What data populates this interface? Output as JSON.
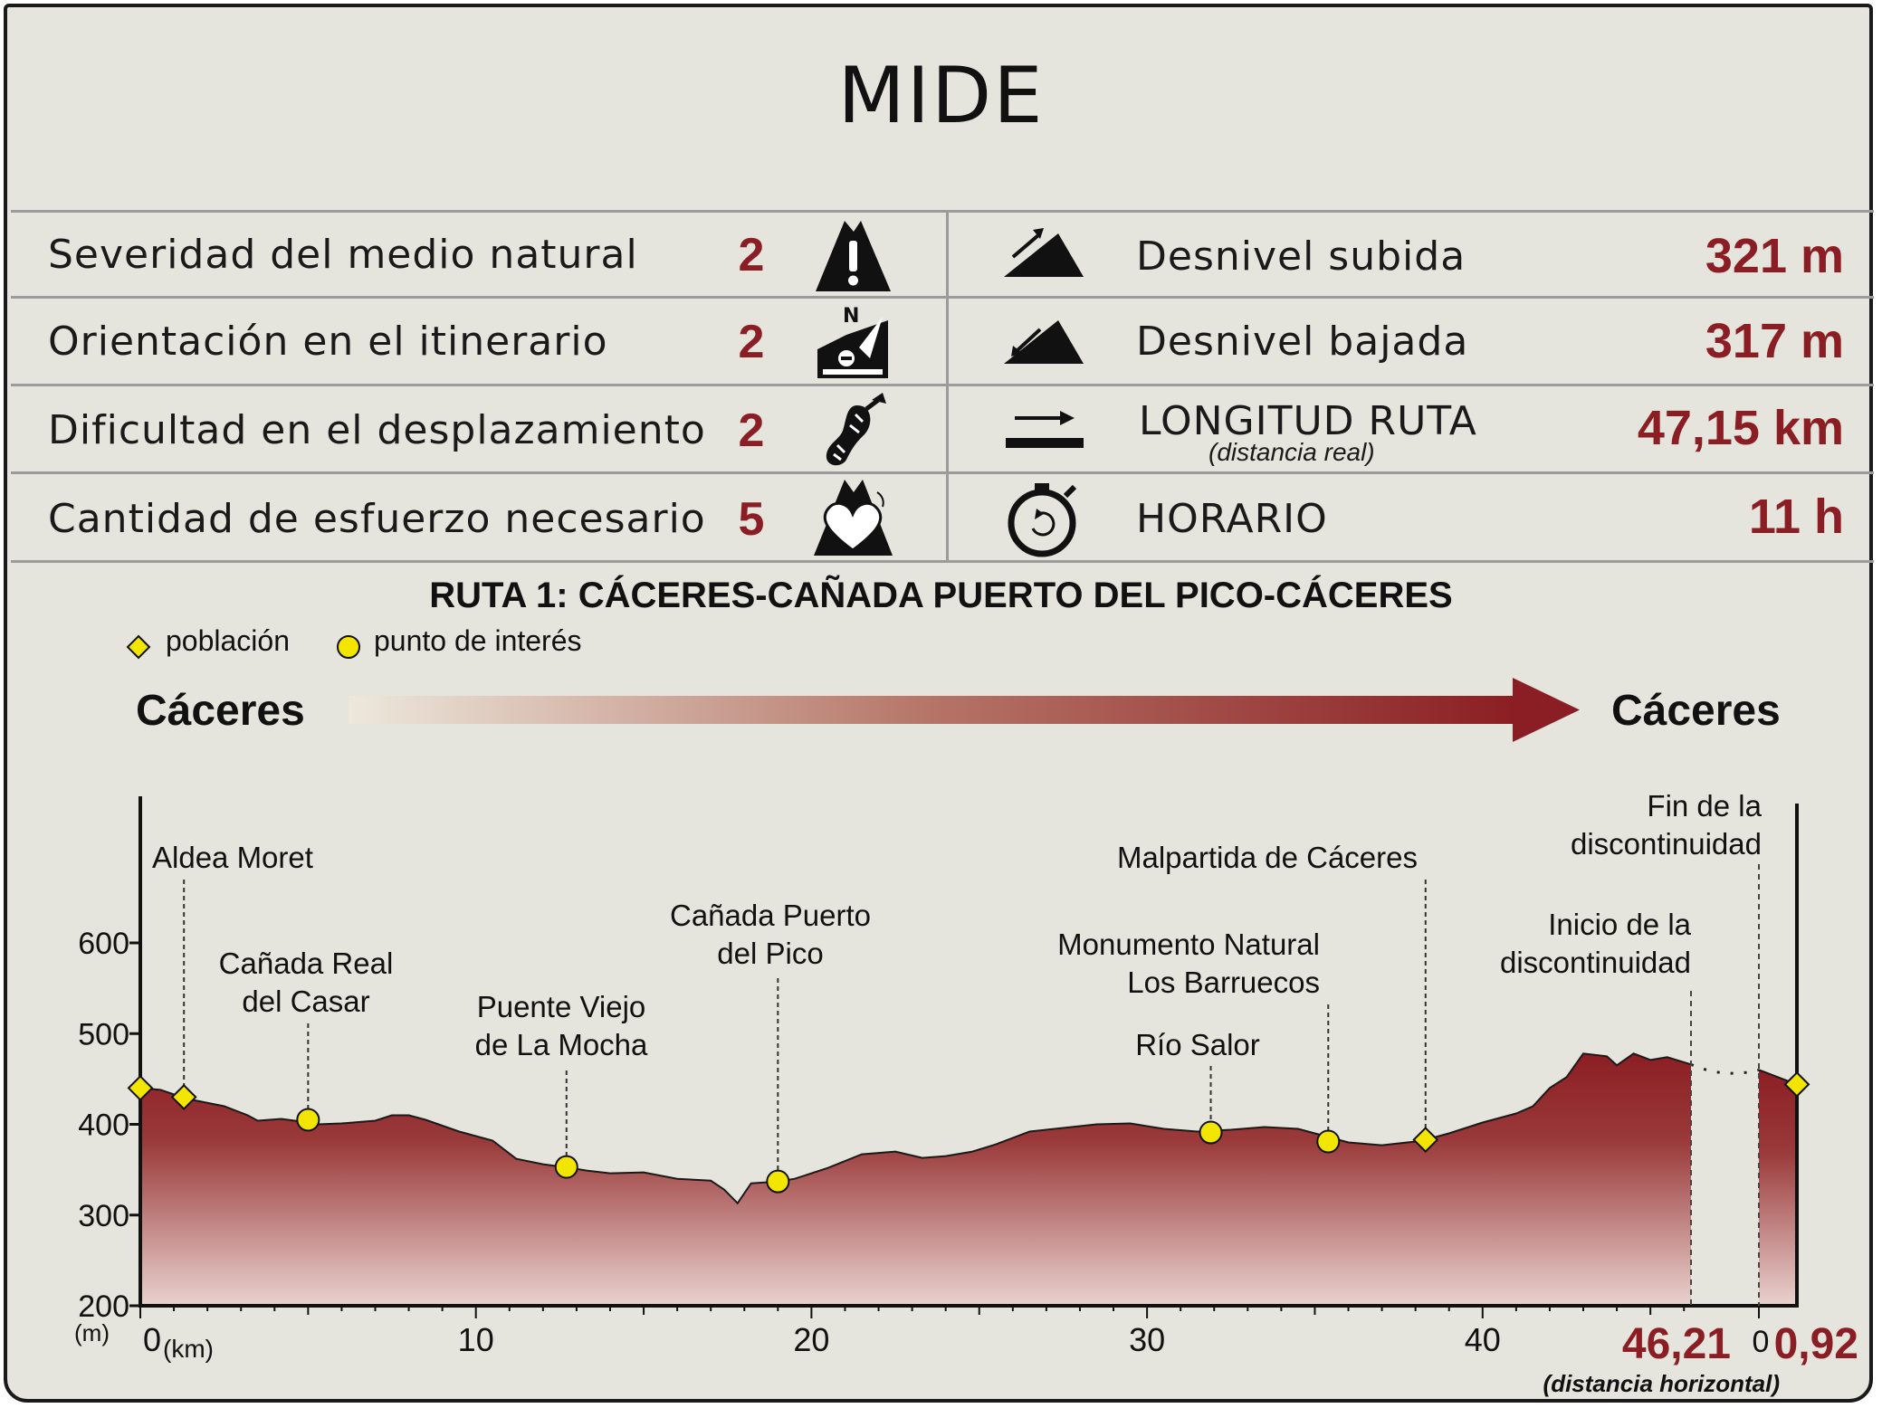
{
  "header": {
    "title": "MIDE"
  },
  "mide": [
    {
      "label": "Severidad del medio natural",
      "score": "2",
      "icon": "warning-mountain-icon"
    },
    {
      "label": "Orientación en el itinerario",
      "score": "2",
      "icon": "compass-orientation-icon"
    },
    {
      "label": "Dificultad en el desplazamiento",
      "score": "2",
      "icon": "footprint-icon"
    },
    {
      "label": "Cantidad de esfuerzo necesario",
      "score": "5",
      "icon": "heart-mountain-icon"
    }
  ],
  "stats": [
    {
      "label": "Desnivel subida",
      "value": "321 m",
      "icon": "ascent-icon"
    },
    {
      "label": "Desnivel bajada",
      "value": "317 m",
      "icon": "descent-icon"
    },
    {
      "label": "LONGITUD RUTA",
      "sublabel": "(distancia real)",
      "value": "47,15 km",
      "icon": "distance-icon"
    },
    {
      "label": "HORARIO",
      "value": "11 h",
      "icon": "stopwatch-icon"
    }
  ],
  "colors": {
    "accent": "#8b1e24",
    "background": "#e5e5dd",
    "marker": "#f2e600"
  },
  "route": {
    "title": "RUTA 1: CÁCERES-CAÑADA PUERTO DEL PICO-CÁCERES",
    "start": "Cáceres",
    "end": "Cáceres"
  },
  "legend": {
    "town": "población",
    "poi": "punto de interés"
  },
  "chart_data": {
    "type": "area",
    "xunit": "(km)",
    "yunit": "(m)",
    "ylim": [
      200,
      600
    ],
    "yticks": [
      200,
      300,
      400,
      500,
      600
    ],
    "xticks": [
      0,
      10,
      20,
      30,
      40
    ],
    "xlim": [
      0,
      46.21
    ],
    "end_segment_label": "0,92",
    "end_segment_zero": "0",
    "total_label": "46,21",
    "total_note": "(distancia horizontal)",
    "series": [
      {
        "x": [
          0,
          0.6,
          1.4,
          2.5,
          3.2,
          3.5,
          4.2,
          5.0,
          5.3,
          6.0,
          7.0,
          7.5,
          8.0,
          8.5,
          9.5,
          10.5,
          11.2,
          12.0,
          12.8,
          13.3,
          14.0,
          15.0,
          16.0,
          17.0,
          17.4,
          17.8,
          18.2,
          19.0,
          19.5,
          20.5,
          21.5,
          22.5,
          23.3,
          24.0,
          24.8,
          25.5,
          26.5,
          27.5,
          28.5,
          29.5,
          30.5,
          31.5,
          32.5,
          33.5,
          34.5,
          35.3,
          36.0,
          37.0,
          38.0,
          38.3,
          39.0,
          40.0,
          41.0,
          41.5,
          42.0,
          42.5,
          43.0,
          43.7,
          44.0,
          44.5,
          45.0,
          45.5,
          46.21
        ],
        "y": [
          440,
          438,
          428,
          420,
          410,
          404,
          406,
          402,
          400,
          401,
          404,
          410,
          410,
          405,
          392,
          382,
          362,
          356,
          352,
          349,
          346,
          347,
          340,
          338,
          328,
          313,
          335,
          337,
          340,
          352,
          367,
          370,
          363,
          365,
          370,
          378,
          392,
          396,
          400,
          401,
          395,
          392,
          394,
          397,
          395,
          387,
          380,
          377,
          381,
          383,
          390,
          402,
          412,
          420,
          440,
          452,
          478,
          475,
          465,
          478,
          471,
          474,
          466
        ]
      },
      {
        "x": [
          0,
          0.92
        ],
        "y": [
          460,
          444
        ]
      }
    ],
    "towns": [
      {
        "name": "",
        "km": 0,
        "elev": 440
      },
      {
        "name": "Aldea Moret",
        "km": 1.3,
        "elev": 430
      },
      {
        "name": "Malpartida de Cáceres",
        "km": 38.3,
        "elev": 383
      },
      {
        "name": "",
        "km": 46.97,
        "elev": 444
      }
    ],
    "pois": [
      {
        "name": "Cañada Real del Casar",
        "km": 5.0,
        "elev": 405
      },
      {
        "name": "Puente Viejo de La Mocha",
        "km": 12.7,
        "elev": 353
      },
      {
        "name": "Cañada Puerto del Pico",
        "km": 19.0,
        "elev": 337
      },
      {
        "name": "Río Salor",
        "km": 31.9,
        "elev": 391
      },
      {
        "name": "Monumento Natural Los Barruecos",
        "km": 35.4,
        "elev": 381
      }
    ],
    "discontinuity": {
      "start": "Inicio de la discontinuidad",
      "end": "Fin de la discontinuidad"
    }
  }
}
